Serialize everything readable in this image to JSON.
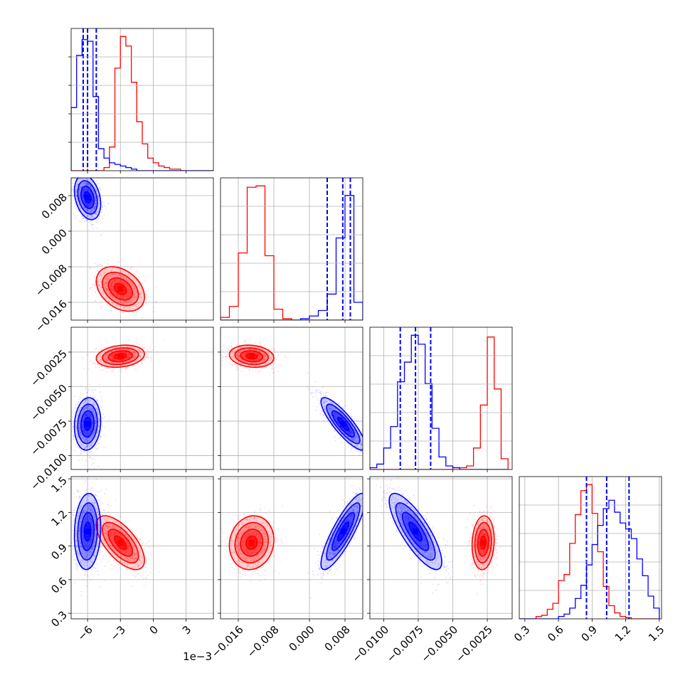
{
  "colors": {
    "series_a": "#ff0000",
    "series_b": "#0000ff",
    "grid": "#b0b0b0",
    "frame": "#000000"
  },
  "chart_data": {
    "type": "corner",
    "grid": true,
    "parameters": [
      {
        "range": [
          -7.5,
          5.5
        ],
        "ticks": [
          -6,
          -3,
          0,
          3
        ],
        "tick_labels": [
          "−6",
          "−3",
          "0",
          "3"
        ],
        "offset_text": "1e−3"
      },
      {
        "range": [
          -0.02,
          0.012
        ],
        "ticks": [
          -0.016,
          -0.008,
          0.0,
          0.008
        ],
        "tick_labels": [
          "−0.016",
          "−0.008",
          "0.000",
          "0.008"
        ]
      },
      {
        "range": [
          -0.011,
          -0.0007
        ],
        "ticks": [
          -0.01,
          -0.0075,
          -0.005,
          -0.0025
        ],
        "tick_labels": [
          "−0.0100",
          "−0.0075",
          "−0.0050",
          "−0.0025"
        ]
      },
      {
        "range": [
          0.25,
          1.52
        ],
        "ticks": [
          0.3,
          0.6,
          0.9,
          1.2,
          1.5
        ],
        "tick_labels": [
          "0.3",
          "0.6",
          "0.9",
          "1.2",
          "1.5"
        ]
      }
    ],
    "series": [
      {
        "color": "#ff0000",
        "histograms": [
          {
            "edges": [
              -7.5,
              -7.0,
              -6.5,
              -6.0,
              -5.5,
              -5.0,
              -4.5,
              -4.0,
              -3.5,
              -3.0,
              -2.5,
              -2.0,
              -1.5,
              -1.0,
              -0.5,
              0.0,
              0.5,
              1.0,
              1.5,
              2.0,
              2.5,
              3.0,
              3.5,
              4.0,
              4.5,
              5.0,
              5.5
            ],
            "counts": [
              0,
              0,
              0,
              0,
              0,
              0,
              2,
              15,
              65,
              85,
              79,
              56,
              31,
              17,
              8,
              5,
              3,
              2,
              1,
              1,
              0,
              0,
              0,
              0,
              0,
              0
            ]
          },
          {
            "edges": [
              -0.02,
              -0.018,
              -0.016,
              -0.014,
              -0.012,
              -0.01,
              -0.008,
              -0.006,
              -0.004,
              -0.002,
              0.0,
              0.002,
              0.004,
              0.006,
              0.008,
              0.01,
              0.012
            ],
            "counts": [
              2,
              10,
              49,
              97,
              98,
              47,
              8,
              1,
              0,
              0,
              0,
              0,
              0,
              0,
              0,
              0
            ]
          },
          {
            "edges": [
              -0.011,
              -0.0105,
              -0.01,
              -0.0095,
              -0.009,
              -0.0085,
              -0.008,
              -0.0075,
              -0.007,
              -0.0065,
              -0.006,
              -0.0055,
              -0.005,
              -0.0045,
              -0.004,
              -0.0035,
              -0.003,
              -0.0025,
              -0.002,
              -0.0015,
              -0.001
            ],
            "counts": [
              0,
              0,
              0,
              0,
              0,
              0,
              0,
              0,
              0,
              0,
              0,
              0,
              1,
              1,
              2,
              12,
              36,
              74,
              45,
              6
            ]
          },
          {
            "edges": [
              0.25,
              0.3,
              0.35,
              0.4,
              0.45,
              0.5,
              0.55,
              0.6,
              0.65,
              0.7,
              0.75,
              0.8,
              0.85,
              0.9,
              0.95,
              1.0,
              1.05,
              1.1,
              1.15,
              1.2,
              1.25,
              1.3,
              1.35,
              1.4,
              1.45,
              1.5
            ],
            "counts": [
              0,
              0,
              0,
              2,
              3,
              8,
              13,
              32,
              37,
              63,
              87,
              107,
              112,
              88,
              56,
              27,
              11,
              5,
              2,
              1,
              0,
              0,
              0,
              0,
              0
            ]
          }
        ],
        "gaussian": {
          "mean": [
            -3.0,
            -0.013,
            -0.0028,
            0.93
          ],
          "sd": [
            1.1,
            0.0025,
            0.0004,
            0.12
          ],
          "corr": [
            [
              1,
              -0.35,
              0.2,
              -0.65
            ],
            [
              -0.35,
              1,
              -0.15,
              0.1
            ],
            [
              0.2,
              -0.15,
              1,
              0.1
            ],
            [
              -0.65,
              0.1,
              0.1,
              1
            ]
          ]
        }
      },
      {
        "color": "#0000ff",
        "histograms": [
          {
            "edges": [
              -7.5,
              -7.0,
              -6.5,
              -6.0,
              -5.5,
              -5.0,
              -4.5,
              -4.0,
              -3.5,
              -3.0,
              -2.5,
              -2.0,
              -1.5,
              -1.0,
              -0.5,
              0.0,
              0.5,
              1.0,
              1.5,
              2.0,
              2.5,
              3.0,
              3.5,
              4.0,
              4.5,
              5.0,
              5.5
            ],
            "counts": [
              40,
              73,
              83,
              82,
              47,
              14,
              8,
              5,
              4,
              3,
              2,
              1,
              0,
              0,
              0,
              0,
              0,
              0,
              0,
              0,
              0,
              0,
              0,
              0,
              0,
              0
            ]
          },
          {
            "edges": [
              -0.02,
              -0.018,
              -0.016,
              -0.014,
              -0.012,
              -0.01,
              -0.008,
              -0.006,
              -0.004,
              -0.002,
              0.0,
              0.002,
              0.004,
              0.006,
              0.008,
              0.01,
              0.012
            ],
            "counts": [
              0,
              0,
              0,
              0,
              0,
              0,
              0,
              0,
              0,
              1,
              3,
              7,
              19,
              60,
              91,
              13
            ]
          },
          {
            "edges": [
              -0.011,
              -0.0105,
              -0.01,
              -0.0095,
              -0.009,
              -0.0085,
              -0.008,
              -0.0075,
              -0.007,
              -0.0065,
              -0.006,
              -0.0055,
              -0.005,
              -0.0045,
              -0.004,
              -0.0035,
              -0.003,
              -0.0025,
              -0.002,
              -0.0015,
              -0.001
            ],
            "counts": [
              1,
              3,
              12,
              24,
              49,
              60,
              75,
              70,
              48,
              23,
              7,
              2,
              1,
              0,
              0,
              0,
              0,
              0,
              0,
              0
            ]
          },
          {
            "edges": [
              0.25,
              0.3,
              0.35,
              0.4,
              0.45,
              0.5,
              0.55,
              0.6,
              0.65,
              0.7,
              0.75,
              0.8,
              0.85,
              0.9,
              0.95,
              1.0,
              1.05,
              1.1,
              1.15,
              1.2,
              1.25,
              1.3,
              1.35,
              1.4,
              1.45,
              1.5
            ],
            "counts": [
              0,
              0,
              0,
              0,
              0,
              0,
              0,
              2,
              4,
              9,
              17,
              28,
              45,
              62,
              78,
              92,
              99,
              89,
              80,
              75,
              67,
              50,
              36,
              19,
              9
            ]
          }
        ],
        "quantiles": [
          [
            -6.4,
            -6.0,
            -5.2
          ],
          [
            0.004,
            0.0075,
            0.0092
          ],
          [
            -0.0088,
            -0.0077,
            -0.0066
          ],
          [
            0.85,
            1.03,
            1.23
          ]
        ],
        "gaussian": {
          "mean": [
            -6.0,
            0.0076,
            -0.0077,
            1.03
          ],
          "sd": [
            0.6,
            0.0025,
            0.00095,
            0.17
          ],
          "corr": [
            [
              1,
              -0.3,
              0.1,
              0.1
            ],
            [
              -0.3,
              1,
              -0.85,
              0.85
            ],
            [
              0.1,
              -0.85,
              1,
              -0.8
            ],
            [
              0.1,
              0.85,
              -0.8,
              1
            ]
          ]
        }
      }
    ]
  }
}
